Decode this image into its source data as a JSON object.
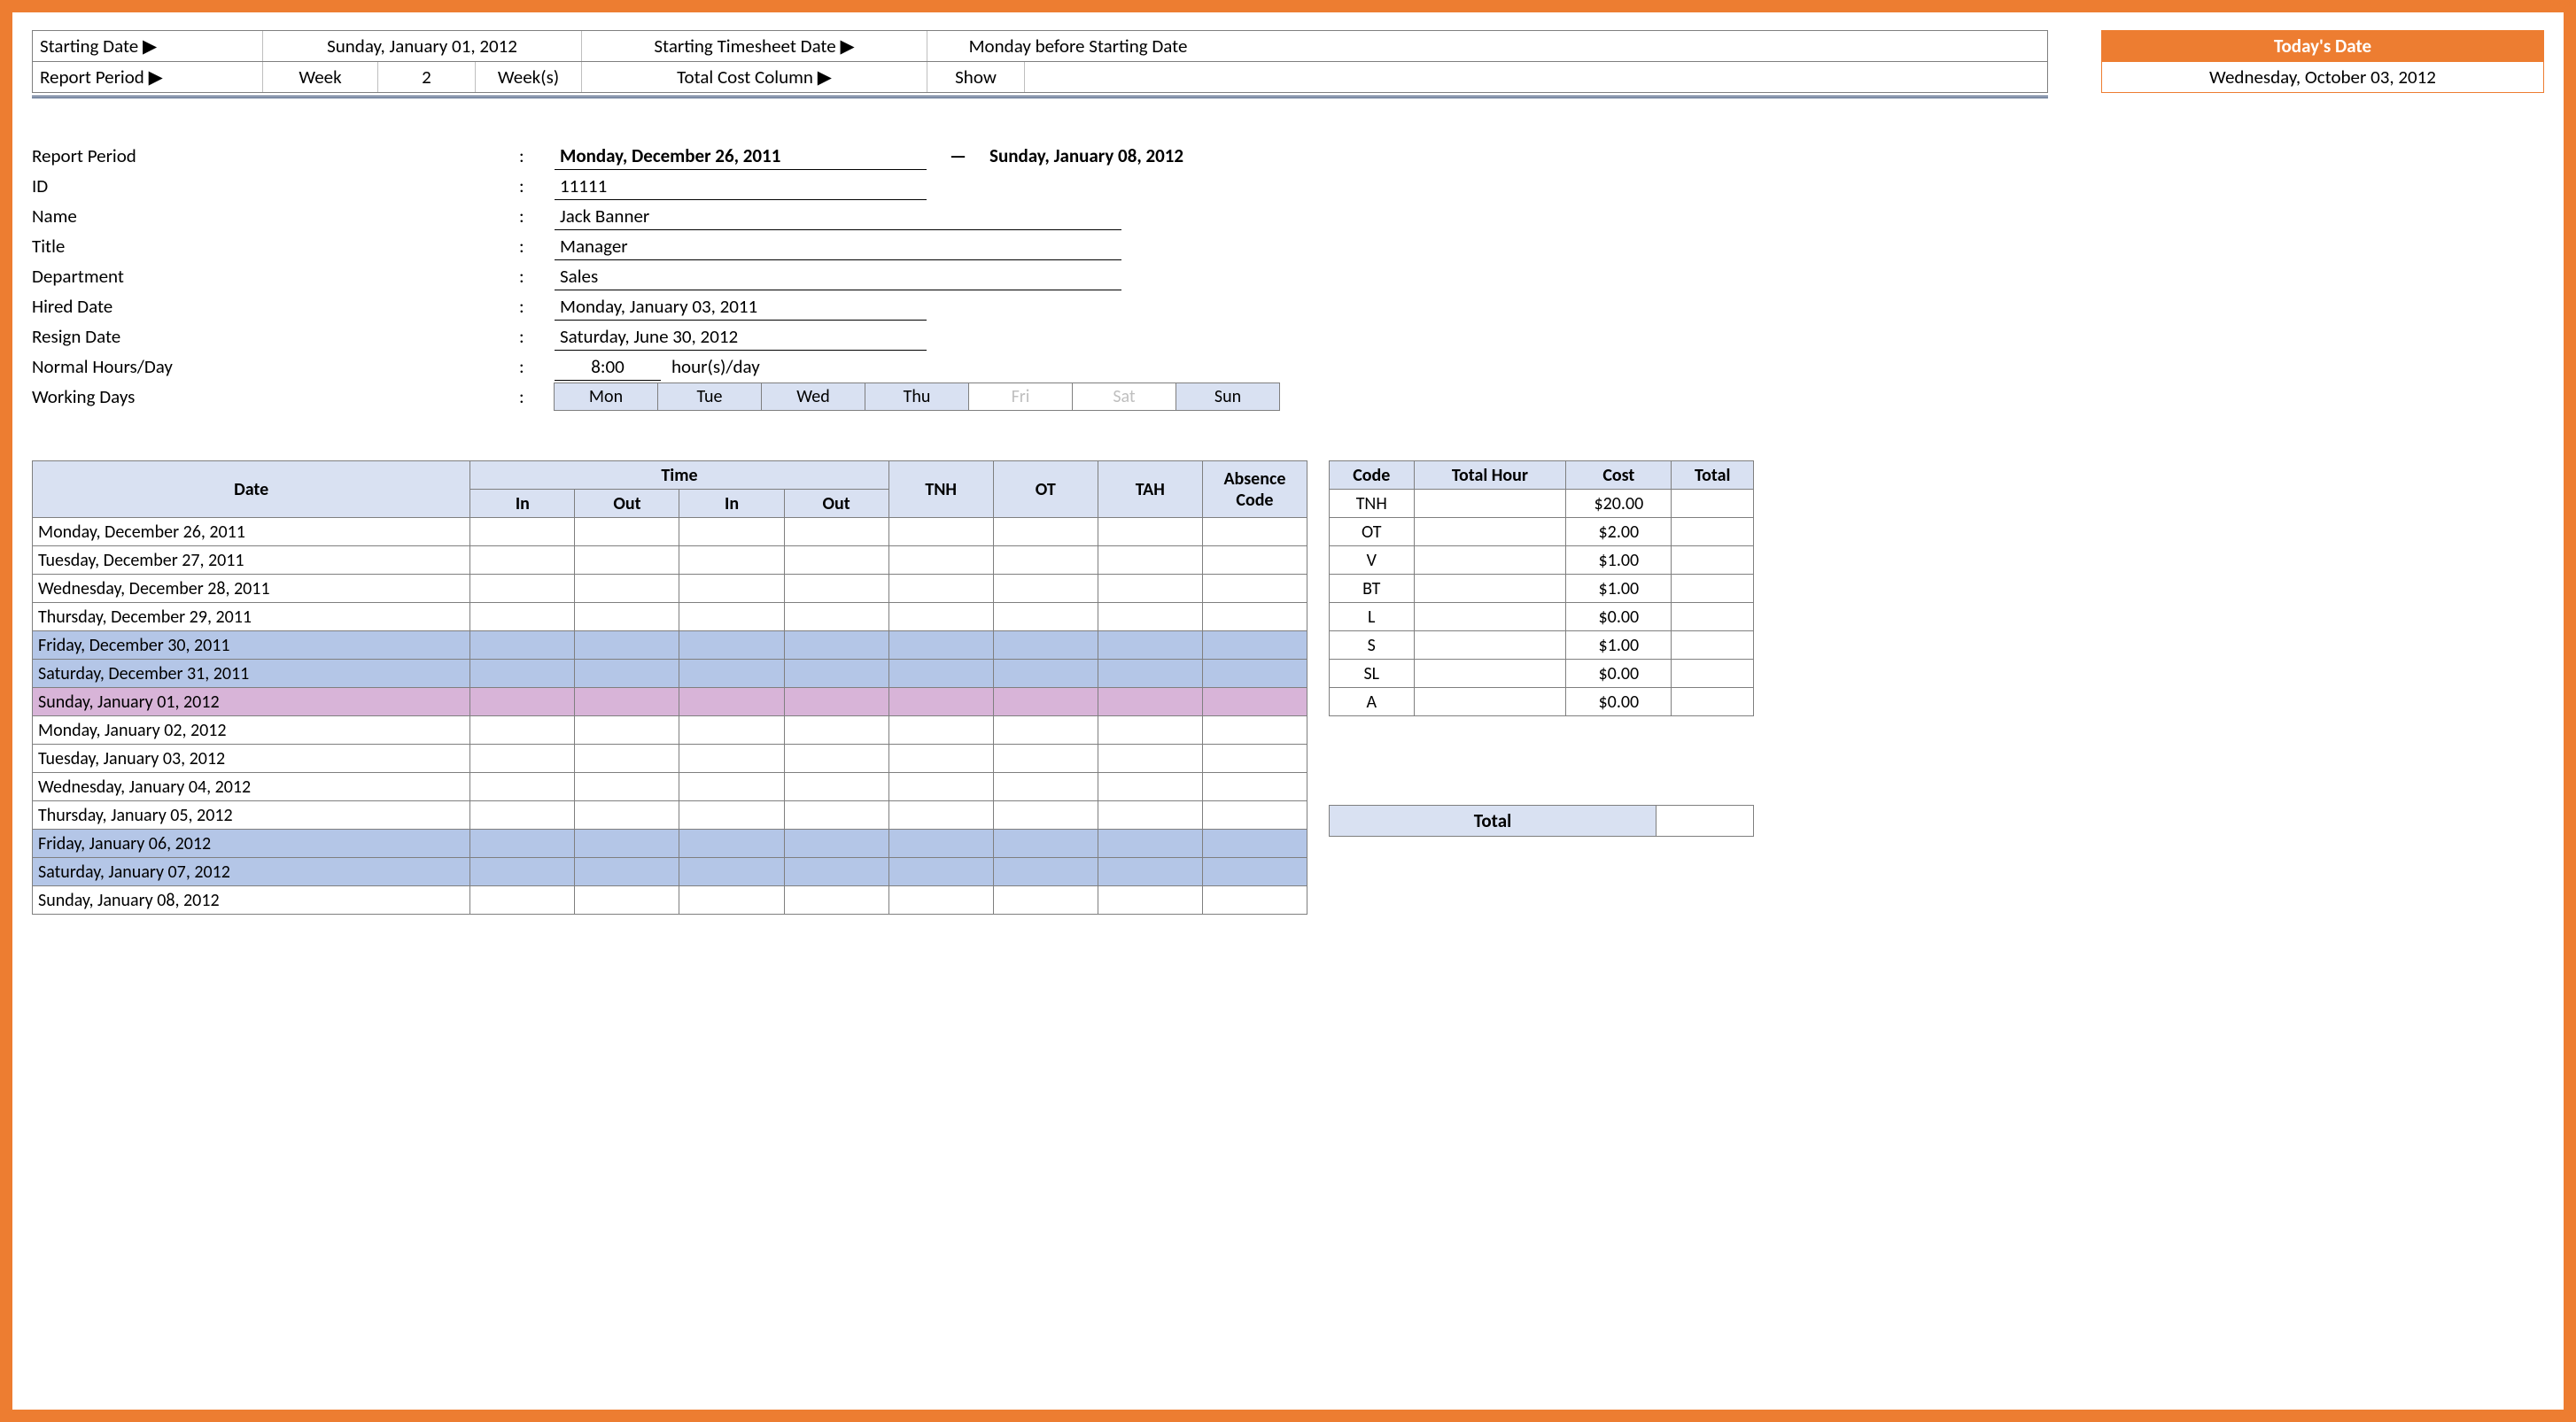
{
  "config": {
    "starting_date_label": "Starting Date ▶",
    "starting_date_value": "Sunday, January 01, 2012",
    "timesheet_date_label": "Starting Timesheet Date ▶",
    "timesheet_date_value": "Monday before Starting Date",
    "report_period_label": "Report Period ▶",
    "report_period_unit": "Week",
    "report_period_count": "2",
    "report_period_suffix": "Week(s)",
    "cost_col_label": "Total Cost Column ▶",
    "cost_col_value": "Show"
  },
  "today": {
    "header": "Today's Date",
    "value": "Wednesday, October 03, 2012"
  },
  "employee": {
    "period_label": "Report Period",
    "period_from": "Monday, December 26, 2011",
    "period_to": "Sunday, January 08, 2012",
    "id_label": "ID",
    "id_value": "11111",
    "name_label": "Name",
    "name_value": "Jack Banner",
    "title_label": "Title",
    "title_value": "Manager",
    "dept_label": "Department",
    "dept_value": "Sales",
    "hired_label": "Hired Date",
    "hired_value": "Monday, January 03, 2011",
    "resign_label": "Resign Date",
    "resign_value": "Saturday, June 30, 2012",
    "hours_label": "Normal Hours/Day",
    "hours_value": "8:00",
    "hours_suffix": "hour(s)/day",
    "days_label": "Working Days",
    "days": [
      {
        "short": "Mon",
        "active": true
      },
      {
        "short": "Tue",
        "active": true
      },
      {
        "short": "Wed",
        "active": true
      },
      {
        "short": "Thu",
        "active": true
      },
      {
        "short": "Fri",
        "active": false
      },
      {
        "short": "Sat",
        "active": false
      },
      {
        "short": "Sun",
        "active": true
      }
    ]
  },
  "timesheet": {
    "headers": {
      "date": "Date",
      "time": "Time",
      "in": "In",
      "out": "Out",
      "tnh": "TNH",
      "ot": "OT",
      "tah": "TAH",
      "abs": "Absence Code"
    },
    "rows": [
      {
        "date": "Monday, December 26, 2011",
        "cls": ""
      },
      {
        "date": "Tuesday, December 27, 2011",
        "cls": ""
      },
      {
        "date": "Wednesday, December 28, 2011",
        "cls": ""
      },
      {
        "date": "Thursday, December 29, 2011",
        "cls": ""
      },
      {
        "date": "Friday, December 30, 2011",
        "cls": "row-weekend"
      },
      {
        "date": "Saturday, December 31, 2011",
        "cls": "row-weekend"
      },
      {
        "date": "Sunday, January 01, 2012",
        "cls": "row-sunday"
      },
      {
        "date": "Monday, January 02, 2012",
        "cls": ""
      },
      {
        "date": "Tuesday, January 03, 2012",
        "cls": ""
      },
      {
        "date": "Wednesday, January 04, 2012",
        "cls": ""
      },
      {
        "date": "Thursday, January 05, 2012",
        "cls": ""
      },
      {
        "date": "Friday, January 06, 2012",
        "cls": "row-weekend"
      },
      {
        "date": "Saturday, January 07, 2012",
        "cls": "row-weekend"
      },
      {
        "date": "Sunday, January 08, 2012",
        "cls": ""
      }
    ]
  },
  "cost": {
    "headers": {
      "code": "Code",
      "hour": "Total Hour",
      "cost": "Cost",
      "total": "Total"
    },
    "rows": [
      {
        "code": "TNH",
        "cost": "$20.00"
      },
      {
        "code": "OT",
        "cost": "$2.00"
      },
      {
        "code": "V",
        "cost": "$1.00"
      },
      {
        "code": "BT",
        "cost": "$1.00"
      },
      {
        "code": "L",
        "cost": "$0.00"
      },
      {
        "code": "S",
        "cost": "$1.00"
      },
      {
        "code": "SL",
        "cost": "$0.00"
      },
      {
        "code": "A",
        "cost": "$0.00"
      }
    ],
    "total_label": "Total"
  }
}
